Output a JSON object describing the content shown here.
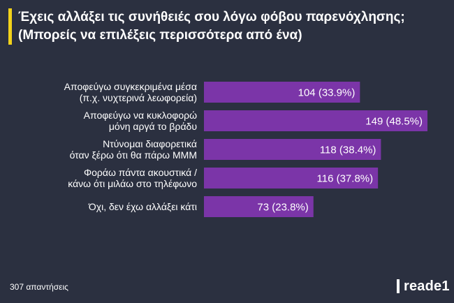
{
  "header": {
    "title_line1": "Έχεις αλλάξει τις συνήθειές σου λόγω φόβου παρενόχλησης;",
    "title_line2": "(Μπορείς να επιλέξεις περισσότερα από ένα)"
  },
  "footer": {
    "responses": "307 απαντήσεις",
    "brand": "reade1"
  },
  "colors": {
    "background": "#2b3040",
    "bar": "#7b35a8",
    "accent": "#f2d21b",
    "text": "#ffffff"
  },
  "chart_data": {
    "type": "bar",
    "orientation": "horizontal",
    "categories": [
      [
        "Αποφεύγω συγκεκριμένα μέσα",
        "(π.χ. νυχτερινά λεωφορεία)"
      ],
      [
        "Αποφεύγω να κυκλοφορώ",
        "μόνη αργά το βράδυ"
      ],
      [
        "Ντύνομαι διαφορετικά",
        "όταν ξέρω ότι θα πάρω ΜΜΜ"
      ],
      [
        "Φοράω πάντα ακουστικά /",
        "κάνω ότι μιλάω στο τηλέφωνο"
      ],
      [
        "Όχι, δεν έχω αλλάξει κάτι"
      ]
    ],
    "values": [
      104,
      149,
      118,
      116,
      73
    ],
    "data_labels": [
      "104 (33.9%)",
      "149 (48.5%)",
      "118 (38.4%)",
      "116 (37.8%)",
      "73 (23.8%)"
    ],
    "xlim": [
      0,
      149
    ],
    "grid": false,
    "legend": "none"
  }
}
